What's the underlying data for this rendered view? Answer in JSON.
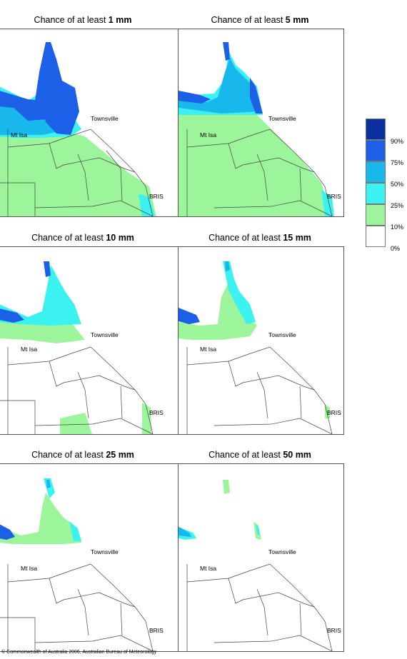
{
  "panels": [
    {
      "title_prefix": "Chance of at least ",
      "amount": "1 mm"
    },
    {
      "title_prefix": "Chance of at least ",
      "amount": "5 mm"
    },
    {
      "title_prefix": "Chance of at least ",
      "amount": "10 mm"
    },
    {
      "title_prefix": "Chance of at least ",
      "amount": "15 mm"
    },
    {
      "title_prefix": "Chance of at least ",
      "amount": "25 mm"
    },
    {
      "title_prefix": "Chance of at least ",
      "amount": "50 mm"
    }
  ],
  "places": {
    "townsville": "Townsville",
    "mt_isa": "Mt Isa",
    "brisbane": "BRIS"
  },
  "legend": {
    "labels": [
      "90%",
      "75%",
      "50%",
      "25%",
      "10%",
      "0%"
    ],
    "colors": [
      "#0a2fa0",
      "#1d60e8",
      "#18b8ec",
      "#3cf2f0",
      "#9cf59a",
      "#ffffff"
    ]
  },
  "copyright": "© Commonwealth of Australia 2006, Australian Bureau of Meteorology"
}
